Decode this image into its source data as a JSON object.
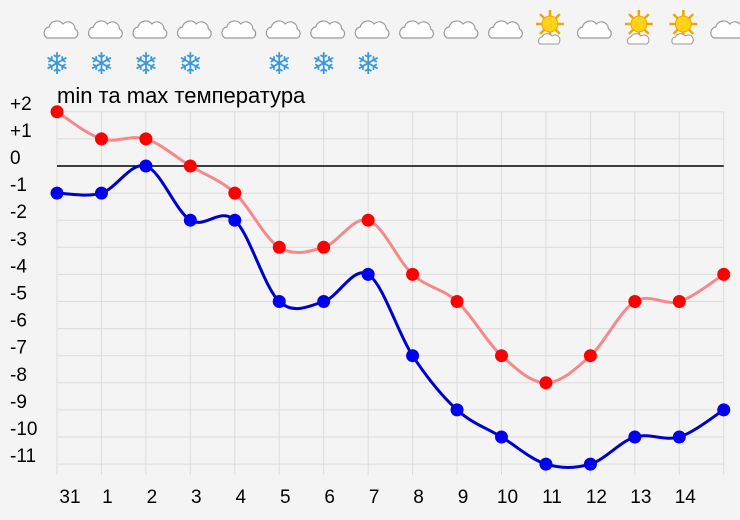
{
  "chart_data": {
    "type": "line",
    "title": "min та max температура",
    "categories": [
      "31",
      "1",
      "2",
      "3",
      "4",
      "5",
      "6",
      "7",
      "8",
      "9",
      "10",
      "11",
      "12",
      "13",
      "14",
      ""
    ],
    "y_tick_labels": [
      "+2",
      "+1",
      "0",
      "-1",
      "-2",
      "-3",
      "-4",
      "-5",
      "-6",
      "-7",
      "-8",
      "-9",
      "-10",
      "-11"
    ],
    "ylim": [
      -11,
      2
    ],
    "grid": true,
    "series": [
      {
        "key": "max",
        "color": "#ff0000",
        "line_color": "#f48a8a",
        "values": [
          2,
          1,
          1,
          0,
          -1,
          -3,
          -3,
          -2,
          -4,
          -5,
          -7,
          -8,
          -7,
          -5,
          -5,
          -4
        ]
      },
      {
        "key": "min",
        "color": "#0000ee",
        "line_color": "#0000cc",
        "values": [
          -1,
          -1,
          0,
          -2,
          -2,
          -5,
          -5,
          -4,
          -7,
          -9,
          -10,
          -11,
          -11,
          -10,
          -10,
          -9
        ]
      }
    ],
    "weather_icons": [
      "cloud",
      "cloud",
      "cloud",
      "cloud",
      "cloud",
      "cloud",
      "cloud",
      "cloud",
      "cloud",
      "cloud",
      "cloud",
      "sun-cloud",
      "cloud",
      "sun-cloud",
      "sun-cloud",
      "cloud"
    ],
    "snow": [
      true,
      true,
      true,
      true,
      false,
      true,
      true,
      true,
      false,
      false,
      false,
      false,
      false,
      false,
      false,
      false
    ]
  }
}
